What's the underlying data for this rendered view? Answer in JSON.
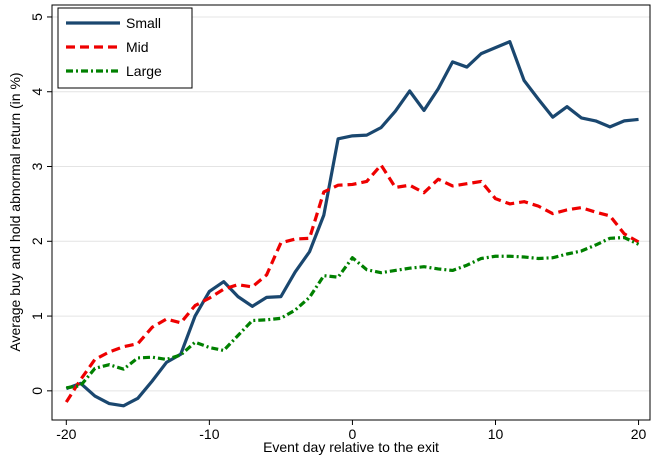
{
  "chart_data": {
    "type": "line",
    "xlabel": "Event day relative to the exit",
    "ylabel": "Average buy and hold abnormal return (in %)",
    "x": [
      -20,
      -19,
      -18,
      -17,
      -16,
      -15,
      -14,
      -13,
      -12,
      -11,
      -10,
      -9,
      -8,
      -7,
      -6,
      -5,
      -4,
      -3,
      -2,
      -1,
      0,
      1,
      2,
      3,
      4,
      5,
      6,
      7,
      8,
      9,
      10,
      11,
      12,
      13,
      14,
      15,
      16,
      17,
      18,
      19,
      20
    ],
    "series": [
      {
        "name": "Small",
        "color": "#1a476f",
        "style": "solid",
        "values": [
          0.03,
          0.1,
          -0.07,
          -0.17,
          -0.2,
          -0.1,
          0.13,
          0.38,
          0.49,
          1.0,
          1.33,
          1.46,
          1.26,
          1.13,
          1.25,
          1.26,
          1.59,
          1.86,
          2.35,
          3.37,
          3.41,
          3.42,
          3.52,
          3.74,
          4.01,
          3.75,
          4.04,
          4.4,
          4.33,
          4.51,
          4.59,
          4.67,
          4.15,
          3.9,
          3.66,
          3.8,
          3.65,
          3.61,
          3.53,
          3.61,
          3.63
        ]
      },
      {
        "name": "Mid",
        "color": "#ee0000",
        "style": "dash",
        "values": [
          -0.15,
          0.15,
          0.42,
          0.52,
          0.59,
          0.63,
          0.85,
          0.96,
          0.91,
          1.14,
          1.24,
          1.36,
          1.42,
          1.39,
          1.55,
          1.98,
          2.03,
          2.04,
          2.66,
          2.75,
          2.76,
          2.8,
          3.02,
          2.72,
          2.75,
          2.65,
          2.83,
          2.74,
          2.77,
          2.8,
          2.57,
          2.5,
          2.53,
          2.47,
          2.37,
          2.42,
          2.45,
          2.39,
          2.34,
          2.1,
          1.99
        ]
      },
      {
        "name": "Large",
        "color": "#008000",
        "style": "dashdot",
        "values": [
          0.04,
          0.07,
          0.3,
          0.35,
          0.29,
          0.44,
          0.45,
          0.42,
          0.48,
          0.65,
          0.58,
          0.54,
          0.74,
          0.94,
          0.95,
          0.97,
          1.08,
          1.25,
          1.54,
          1.52,
          1.78,
          1.62,
          1.58,
          1.61,
          1.64,
          1.66,
          1.63,
          1.61,
          1.68,
          1.77,
          1.8,
          1.8,
          1.79,
          1.77,
          1.78,
          1.83,
          1.87,
          1.95,
          2.04,
          2.05,
          1.96
        ]
      }
    ],
    "xlim": [
      -21,
      20.8
    ],
    "ylim": [
      -0.39,
      5.16
    ],
    "xticks": [
      -20,
      -10,
      0,
      10,
      20
    ],
    "yticks": [
      0,
      1,
      2,
      3,
      4,
      5
    ],
    "grid": true,
    "legend": "top-left"
  }
}
